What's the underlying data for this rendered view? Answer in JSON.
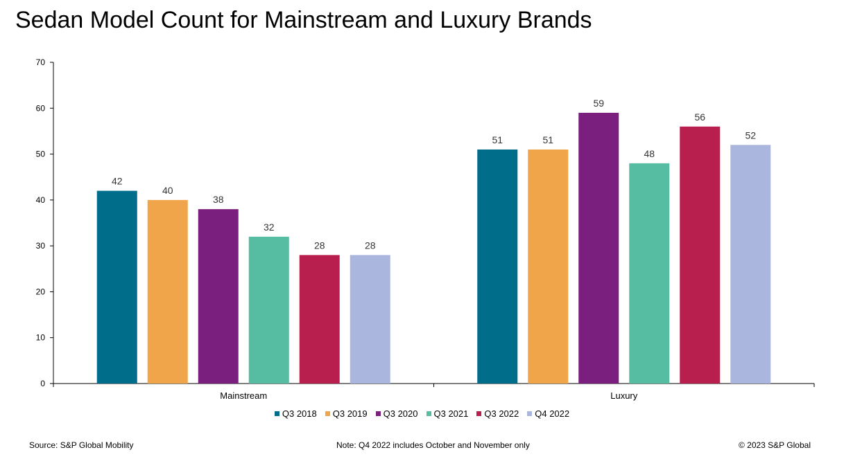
{
  "title": "Sedan Model Count for Mainstream and Luxury Brands",
  "footer": {
    "source": "Source: S&P Global Mobility",
    "note": "Note: Q4 2022 includes October and November only",
    "copyright": "© 2023 S&P Global"
  },
  "chart_data": {
    "type": "bar",
    "categories": [
      "Mainstream",
      "Luxury"
    ],
    "series": [
      {
        "name": "Q3 2018",
        "color": "#006d8a",
        "values": [
          42,
          51
        ]
      },
      {
        "name": "Q3 2019",
        "color": "#f0a54a",
        "values": [
          40,
          51
        ]
      },
      {
        "name": "Q3 2020",
        "color": "#7a1f7d",
        "values": [
          38,
          59
        ]
      },
      {
        "name": "Q3 2021",
        "color": "#56bda3",
        "values": [
          32,
          48
        ]
      },
      {
        "name": "Q3 2022",
        "color": "#b81e4e",
        "values": [
          28,
          56
        ]
      },
      {
        "name": "Q4 2022",
        "color": "#aab6de",
        "values": [
          28,
          52
        ]
      }
    ],
    "ylim": [
      0,
      70
    ],
    "yticks": [
      0,
      10,
      20,
      30,
      40,
      50,
      60,
      70
    ],
    "grid": false,
    "legend": "bottom",
    "data_labels": true
  }
}
